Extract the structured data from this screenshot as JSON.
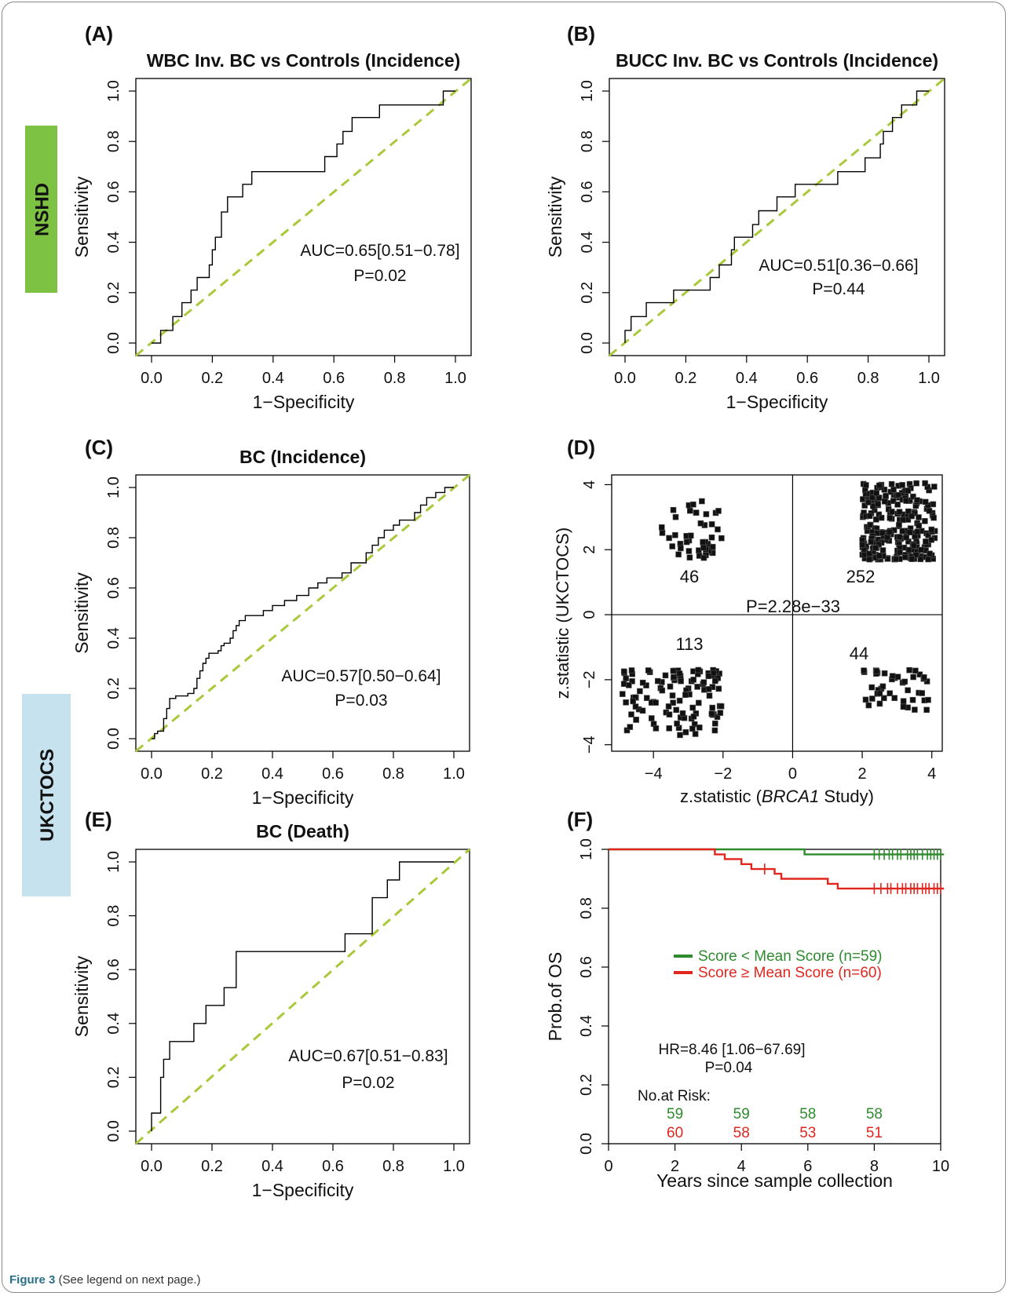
{
  "caption": {
    "label": "Figure 3",
    "text": "(See legend on next page.)"
  },
  "cohorts": [
    {
      "name": "NSHD",
      "color": "#7dc242",
      "text_color": "#111111"
    },
    {
      "name": "UKCTOCS",
      "color": "#c6e2ee",
      "text_color": "#111111"
    }
  ],
  "colors": {
    "diagonal": "#a9c93a",
    "step": "#000000",
    "low_group": "#2e8b2e",
    "high_group": "#e0261f"
  },
  "chart_data": [
    {
      "id": "A",
      "letter": "(A)",
      "type": "line",
      "title": "WBC Inv. BC vs Controls (Incidence)",
      "xlabel": "1−Specificity",
      "ylabel": "Sensitivity",
      "xlim": [
        0,
        1
      ],
      "ylim": [
        0,
        1
      ],
      "ticks": [
        "0.0",
        "0.2",
        "0.4",
        "0.6",
        "0.8",
        "1.0"
      ],
      "annotations": [
        "AUC=0.65[0.51−0.78]",
        "P=0.02"
      ],
      "roc": [
        [
          0,
          0
        ],
        [
          0.03,
          0
        ],
        [
          0.03,
          0.05
        ],
        [
          0.07,
          0.05
        ],
        [
          0.07,
          0.105
        ],
        [
          0.1,
          0.105
        ],
        [
          0.1,
          0.16
        ],
        [
          0.13,
          0.16
        ],
        [
          0.13,
          0.21
        ],
        [
          0.15,
          0.21
        ],
        [
          0.15,
          0.26
        ],
        [
          0.19,
          0.26
        ],
        [
          0.19,
          0.31
        ],
        [
          0.2,
          0.31
        ],
        [
          0.2,
          0.37
        ],
        [
          0.21,
          0.37
        ],
        [
          0.21,
          0.42
        ],
        [
          0.23,
          0.42
        ],
        [
          0.23,
          0.52
        ],
        [
          0.25,
          0.52
        ],
        [
          0.25,
          0.58
        ],
        [
          0.3,
          0.58
        ],
        [
          0.3,
          0.63
        ],
        [
          0.33,
          0.63
        ],
        [
          0.33,
          0.68
        ],
        [
          0.57,
          0.68
        ],
        [
          0.57,
          0.74
        ],
        [
          0.61,
          0.74
        ],
        [
          0.61,
          0.79
        ],
        [
          0.63,
          0.79
        ],
        [
          0.63,
          0.84
        ],
        [
          0.66,
          0.84
        ],
        [
          0.66,
          0.895
        ],
        [
          0.75,
          0.895
        ],
        [
          0.75,
          0.945
        ],
        [
          0.96,
          0.945
        ],
        [
          0.96,
          1.0
        ],
        [
          1,
          1
        ]
      ]
    },
    {
      "id": "B",
      "letter": "(B)",
      "type": "line",
      "title": "BUCC Inv. BC vs Controls (Incidence)",
      "xlabel": "1−Specificity",
      "ylabel": "Sensitivity",
      "xlim": [
        0,
        1
      ],
      "ylim": [
        0,
        1
      ],
      "ticks": [
        "0.0",
        "0.2",
        "0.4",
        "0.6",
        "0.8",
        "1.0"
      ],
      "annotations": [
        "AUC=0.51[0.36−0.66]",
        "P=0.44"
      ],
      "roc": [
        [
          0,
          0
        ],
        [
          0,
          0.05
        ],
        [
          0.02,
          0.05
        ],
        [
          0.02,
          0.105
        ],
        [
          0.07,
          0.105
        ],
        [
          0.07,
          0.16
        ],
        [
          0.16,
          0.16
        ],
        [
          0.16,
          0.21
        ],
        [
          0.28,
          0.21
        ],
        [
          0.28,
          0.26
        ],
        [
          0.31,
          0.26
        ],
        [
          0.31,
          0.31
        ],
        [
          0.35,
          0.31
        ],
        [
          0.35,
          0.37
        ],
        [
          0.36,
          0.37
        ],
        [
          0.36,
          0.42
        ],
        [
          0.42,
          0.42
        ],
        [
          0.42,
          0.47
        ],
        [
          0.44,
          0.47
        ],
        [
          0.44,
          0.525
        ],
        [
          0.5,
          0.525
        ],
        [
          0.5,
          0.58
        ],
        [
          0.56,
          0.58
        ],
        [
          0.56,
          0.63
        ],
        [
          0.7,
          0.63
        ],
        [
          0.7,
          0.68
        ],
        [
          0.79,
          0.68
        ],
        [
          0.79,
          0.735
        ],
        [
          0.84,
          0.735
        ],
        [
          0.84,
          0.79
        ],
        [
          0.85,
          0.79
        ],
        [
          0.85,
          0.84
        ],
        [
          0.88,
          0.84
        ],
        [
          0.88,
          0.895
        ],
        [
          0.91,
          0.895
        ],
        [
          0.91,
          0.945
        ],
        [
          0.96,
          0.945
        ],
        [
          0.96,
          1.0
        ],
        [
          1,
          1
        ]
      ]
    },
    {
      "id": "C",
      "letter": "(C)",
      "type": "line",
      "title": "BC (Incidence)",
      "xlabel": "1−Specificity",
      "ylabel": "Sensitivity",
      "xlim": [
        0,
        1
      ],
      "ylim": [
        0,
        1
      ],
      "ticks": [
        "0.0",
        "0.2",
        "0.4",
        "0.6",
        "0.8",
        "1.0"
      ],
      "annotations": [
        "AUC=0.57[0.50−0.64]",
        "P=0.03"
      ],
      "roc": [
        [
          0,
          0
        ],
        [
          0.01,
          0
        ],
        [
          0.01,
          0.02
        ],
        [
          0.02,
          0.02
        ],
        [
          0.02,
          0.03
        ],
        [
          0.04,
          0.03
        ],
        [
          0.04,
          0.08
        ],
        [
          0.05,
          0.08
        ],
        [
          0.05,
          0.12
        ],
        [
          0.06,
          0.12
        ],
        [
          0.06,
          0.16
        ],
        [
          0.08,
          0.16
        ],
        [
          0.08,
          0.17
        ],
        [
          0.12,
          0.17
        ],
        [
          0.12,
          0.18
        ],
        [
          0.14,
          0.18
        ],
        [
          0.14,
          0.2
        ],
        [
          0.15,
          0.2
        ],
        [
          0.15,
          0.24
        ],
        [
          0.16,
          0.24
        ],
        [
          0.16,
          0.27
        ],
        [
          0.17,
          0.27
        ],
        [
          0.17,
          0.3
        ],
        [
          0.18,
          0.3
        ],
        [
          0.18,
          0.32
        ],
        [
          0.19,
          0.32
        ],
        [
          0.19,
          0.34
        ],
        [
          0.22,
          0.34
        ],
        [
          0.22,
          0.35
        ],
        [
          0.23,
          0.35
        ],
        [
          0.23,
          0.37
        ],
        [
          0.24,
          0.37
        ],
        [
          0.24,
          0.38
        ],
        [
          0.26,
          0.38
        ],
        [
          0.26,
          0.4
        ],
        [
          0.27,
          0.4
        ],
        [
          0.27,
          0.43
        ],
        [
          0.28,
          0.43
        ],
        [
          0.28,
          0.45
        ],
        [
          0.29,
          0.45
        ],
        [
          0.29,
          0.47
        ],
        [
          0.31,
          0.47
        ],
        [
          0.31,
          0.49
        ],
        [
          0.37,
          0.49
        ],
        [
          0.37,
          0.51
        ],
        [
          0.4,
          0.51
        ],
        [
          0.4,
          0.53
        ],
        [
          0.44,
          0.53
        ],
        [
          0.44,
          0.55
        ],
        [
          0.48,
          0.55
        ],
        [
          0.48,
          0.57
        ],
        [
          0.52,
          0.57
        ],
        [
          0.52,
          0.6
        ],
        [
          0.55,
          0.6
        ],
        [
          0.55,
          0.62
        ],
        [
          0.58,
          0.62
        ],
        [
          0.58,
          0.64
        ],
        [
          0.63,
          0.64
        ],
        [
          0.63,
          0.66
        ],
        [
          0.66,
          0.66
        ],
        [
          0.66,
          0.7
        ],
        [
          0.71,
          0.7
        ],
        [
          0.71,
          0.74
        ],
        [
          0.73,
          0.74
        ],
        [
          0.73,
          0.77
        ],
        [
          0.75,
          0.77
        ],
        [
          0.75,
          0.8
        ],
        [
          0.77,
          0.8
        ],
        [
          0.77,
          0.83
        ],
        [
          0.8,
          0.83
        ],
        [
          0.8,
          0.85
        ],
        [
          0.82,
          0.85
        ],
        [
          0.82,
          0.87
        ],
        [
          0.87,
          0.87
        ],
        [
          0.87,
          0.9
        ],
        [
          0.89,
          0.9
        ],
        [
          0.89,
          0.93
        ],
        [
          0.91,
          0.93
        ],
        [
          0.91,
          0.96
        ],
        [
          0.94,
          0.96
        ],
        [
          0.94,
          0.98
        ],
        [
          0.97,
          0.98
        ],
        [
          0.97,
          1.0
        ],
        [
          1,
          1
        ]
      ]
    },
    {
      "id": "D",
      "letter": "(D)",
      "type": "scatter",
      "title": "",
      "xlabel": "z.statistic (",
      "xlabel_italic": "BRCA1",
      "xlabel_tail": " Study)",
      "ylabel": "z.statistic (UKCTOCS)",
      "xlim": [
        -5.2,
        4.3
      ],
      "ylim": [
        -4.2,
        4.3
      ],
      "xticks": [
        {
          "v": -4,
          "t": "−4"
        },
        {
          "v": -2,
          "t": "−2"
        },
        {
          "v": 0,
          "t": "0"
        },
        {
          "v": 2,
          "t": "2"
        },
        {
          "v": 4,
          "t": "4"
        }
      ],
      "yticks": [
        {
          "v": -4,
          "t": "−4"
        },
        {
          "v": -2,
          "t": "−2"
        },
        {
          "v": 0,
          "t": "0"
        },
        {
          "v": 2,
          "t": "2"
        },
        {
          "v": 4,
          "t": "4"
        }
      ],
      "quadrants": [
        {
          "count": "46",
          "n": 46,
          "x": [
            -3.8,
            -2.0
          ],
          "y": [
            1.75,
            3.5
          ]
        },
        {
          "count": "252",
          "n": 252,
          "x": [
            2.0,
            4.1
          ],
          "y": [
            1.7,
            4.05
          ]
        },
        {
          "count": "113",
          "n": 113,
          "x": [
            -4.9,
            -2.0
          ],
          "y": [
            -3.8,
            -1.7
          ]
        },
        {
          "count": "44",
          "n": 44,
          "x": [
            2.0,
            3.9
          ],
          "y": [
            -3.0,
            -1.7
          ]
        }
      ],
      "pvalue": "P=2.28e−33"
    },
    {
      "id": "E",
      "letter": "(E)",
      "type": "line",
      "title": "BC (Death)",
      "xlabel": "1−Specificity",
      "ylabel": "Sensitivity",
      "xlim": [
        0,
        1
      ],
      "ylim": [
        0,
        1
      ],
      "ticks": [
        "0.0",
        "0.2",
        "0.4",
        "0.6",
        "0.8",
        "1.0"
      ],
      "annotations": [
        "AUC=0.67[0.51−0.83]",
        "P=0.02"
      ],
      "roc": [
        [
          0,
          0
        ],
        [
          0,
          0.067
        ],
        [
          0.03,
          0.067
        ],
        [
          0.03,
          0.2
        ],
        [
          0.04,
          0.2
        ],
        [
          0.04,
          0.267
        ],
        [
          0.06,
          0.267
        ],
        [
          0.06,
          0.333
        ],
        [
          0.14,
          0.333
        ],
        [
          0.14,
          0.4
        ],
        [
          0.18,
          0.4
        ],
        [
          0.18,
          0.467
        ],
        [
          0.24,
          0.467
        ],
        [
          0.24,
          0.533
        ],
        [
          0.28,
          0.533
        ],
        [
          0.28,
          0.667
        ],
        [
          0.64,
          0.667
        ],
        [
          0.64,
          0.733
        ],
        [
          0.73,
          0.733
        ],
        [
          0.73,
          0.867
        ],
        [
          0.78,
          0.867
        ],
        [
          0.78,
          0.933
        ],
        [
          0.82,
          0.933
        ],
        [
          0.82,
          1.0
        ],
        [
          1,
          1
        ]
      ]
    },
    {
      "id": "F",
      "letter": "(F)",
      "type": "line",
      "title": "",
      "xlabel": "Years since sample collection",
      "ylabel": "Prob.of OS",
      "xlim": [
        0,
        10
      ],
      "ylim": [
        0,
        1
      ],
      "xticks": [
        "0",
        "2",
        "4",
        "6",
        "8",
        "10"
      ],
      "yticks": [
        "0.0",
        "0.2",
        "0.4",
        "0.6",
        "0.8",
        "1.0"
      ],
      "series": [
        {
          "name": "Score < Mean Score (n=59)",
          "color": "#2e8b2e",
          "steps": [
            [
              0,
              1
            ],
            [
              5.9,
              1
            ],
            [
              5.9,
              0.983
            ],
            [
              10.1,
              0.983
            ]
          ],
          "censor": [
            8.0,
            8.15,
            8.3,
            8.45,
            8.55,
            8.7,
            8.8,
            9.0,
            9.1,
            9.2,
            9.3,
            9.45,
            9.6,
            9.7,
            9.8,
            9.9,
            10.0
          ]
        },
        {
          "name": "Score ≥ Mean Score (n=60)",
          "color": "#e0261f",
          "steps": [
            [
              0,
              1
            ],
            [
              3.2,
              1
            ],
            [
              3.2,
              0.983
            ],
            [
              3.5,
              0.983
            ],
            [
              3.5,
              0.967
            ],
            [
              4.0,
              0.967
            ],
            [
              4.0,
              0.95
            ],
            [
              4.3,
              0.95
            ],
            [
              4.3,
              0.933
            ],
            [
              5.0,
              0.933
            ],
            [
              5.0,
              0.917
            ],
            [
              5.2,
              0.917
            ],
            [
              5.2,
              0.9
            ],
            [
              6.6,
              0.9
            ],
            [
              6.6,
              0.883
            ],
            [
              6.9,
              0.883
            ],
            [
              6.9,
              0.867
            ],
            [
              10.1,
              0.867
            ]
          ],
          "censor": [
            4.7,
            8.0,
            8.2,
            8.4,
            8.5,
            8.7,
            8.85,
            8.95,
            9.1,
            9.2,
            9.3,
            9.45,
            9.55,
            9.65,
            9.8,
            9.9,
            10.0
          ]
        }
      ],
      "annotations": [
        "HR=8.46 [1.06−67.69]",
        "P=0.04"
      ],
      "risk_label": "No.at Risk:",
      "risk_times": [
        2,
        4,
        6,
        8
      ],
      "risk_low": [
        "59",
        "59",
        "58",
        "58"
      ],
      "risk_high": [
        "60",
        "58",
        "53",
        "51"
      ]
    }
  ]
}
